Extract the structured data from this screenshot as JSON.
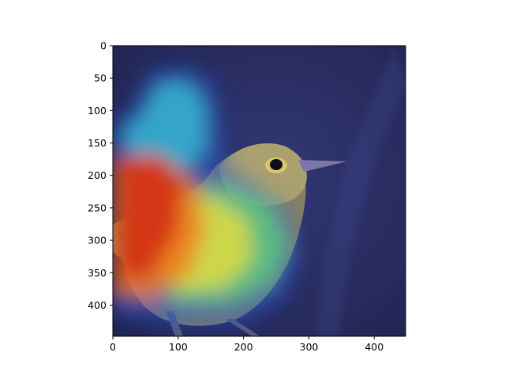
{
  "figure": {
    "type": "heatmap-overlay-image",
    "subject": "bird",
    "colormap": "jet",
    "background_color": "#ffffff"
  },
  "chart_data": {
    "type": "heatmap",
    "title": "",
    "xlabel": "",
    "ylabel": "",
    "xlim": [
      0,
      448
    ],
    "ylim": [
      448,
      0
    ],
    "x_ticks": [
      "0",
      "100",
      "200",
      "300",
      "400"
    ],
    "y_ticks": [
      "0",
      "50",
      "100",
      "150",
      "200",
      "250",
      "300",
      "350",
      "400"
    ],
    "grid": false,
    "legend": "none",
    "colormap": "jet",
    "overlay_colors": {
      "background": "#262a5c",
      "bird_body": "#8a7f62",
      "bird_head": "#b0a672",
      "beak": "#7c77a6",
      "eye": "#0e0e1a",
      "hot": "#d42a10",
      "warm": "#f07a1c",
      "yellow": "#e8de3a",
      "green": "#5ed67a",
      "cyan": "#3ac6d8",
      "blue": "#2a58c8"
    }
  }
}
